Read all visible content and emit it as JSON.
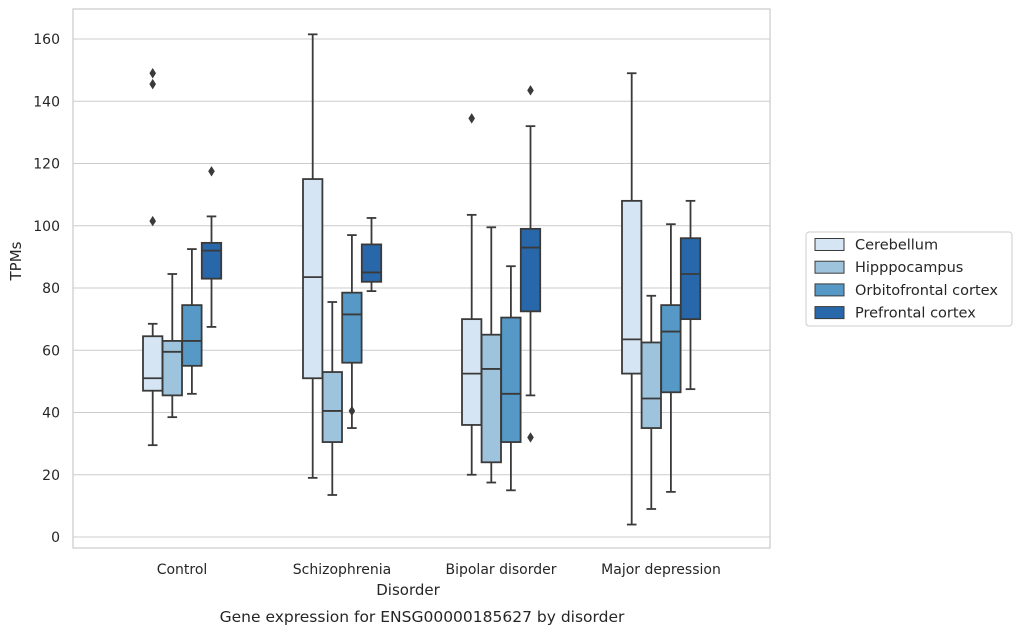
{
  "chart_data": {
    "type": "box",
    "xlabel": "Disorder",
    "ylabel": "TPMs",
    "caption": "Gene expression for ENSG00000185627 by disorder",
    "ylim": [
      -3,
      170
    ],
    "yticks": [
      0,
      20,
      40,
      60,
      80,
      100,
      120,
      140,
      160
    ],
    "grid": true,
    "legend_position": "right",
    "categories": [
      "Control",
      "Schizophrenia",
      "Bipolar disorder",
      "Major depression"
    ],
    "series": [
      {
        "name": "Cerebellum",
        "color": "#d6e5f3",
        "boxes": [
          {
            "whislo": 29.5,
            "q1": 47,
            "med": 51,
            "q3": 64.5,
            "whishi": 68.5,
            "fliers": [
              101.5,
              145.5,
              149
            ]
          },
          {
            "whislo": 19,
            "q1": 51,
            "med": 83.5,
            "q3": 115,
            "whishi": 161.5,
            "fliers": []
          },
          {
            "whislo": 20,
            "q1": 36,
            "med": 52.5,
            "q3": 70,
            "whishi": 103.5,
            "fliers": [
              134.5
            ]
          },
          {
            "whislo": 4,
            "q1": 52.5,
            "med": 63.5,
            "q3": 108,
            "whishi": 149,
            "fliers": []
          }
        ]
      },
      {
        "name": "Hipppocampus",
        "color": "#9ec4dd",
        "boxes": [
          {
            "whislo": 38.5,
            "q1": 45.5,
            "med": 59.5,
            "q3": 63,
            "whishi": 84.5,
            "fliers": []
          },
          {
            "whislo": 13.5,
            "q1": 30.5,
            "med": 40.5,
            "q3": 53,
            "whishi": 75.5,
            "fliers": []
          },
          {
            "whislo": 17.5,
            "q1": 24,
            "med": 54,
            "q3": 65,
            "whishi": 99.5,
            "fliers": []
          },
          {
            "whislo": 9,
            "q1": 35,
            "med": 44.5,
            "q3": 62.5,
            "whishi": 77.5,
            "fliers": []
          }
        ]
      },
      {
        "name": "Orbitofrontal cortex",
        "color": "#5699c6",
        "boxes": [
          {
            "whislo": 46,
            "q1": 55,
            "med": 63,
            "q3": 74.5,
            "whishi": 92.5,
            "fliers": []
          },
          {
            "whislo": 35,
            "q1": 56,
            "med": 71.5,
            "q3": 78.5,
            "whishi": 97,
            "fliers": [
              40.5
            ]
          },
          {
            "whislo": 15,
            "q1": 30.5,
            "med": 46,
            "q3": 70.5,
            "whishi": 87,
            "fliers": []
          },
          {
            "whislo": 14.5,
            "q1": 46.5,
            "med": 66,
            "q3": 74.5,
            "whishi": 100.5,
            "fliers": []
          }
        ]
      },
      {
        "name": "Prefrontal cortex",
        "color": "#2867a9",
        "boxes": [
          {
            "whislo": 67.5,
            "q1": 83,
            "med": 92,
            "q3": 94.5,
            "whishi": 103,
            "fliers": [
              117.5
            ]
          },
          {
            "whislo": 79,
            "q1": 82,
            "med": 85,
            "q3": 94,
            "whishi": 102.5,
            "fliers": []
          },
          {
            "whislo": 45.5,
            "q1": 72.5,
            "med": 93,
            "q3": 99,
            "whishi": 132,
            "fliers": [
              32,
              143.5
            ]
          },
          {
            "whislo": 47.5,
            "q1": 70,
            "med": 84.5,
            "q3": 96,
            "whishi": 108,
            "fliers": []
          }
        ]
      }
    ]
  }
}
